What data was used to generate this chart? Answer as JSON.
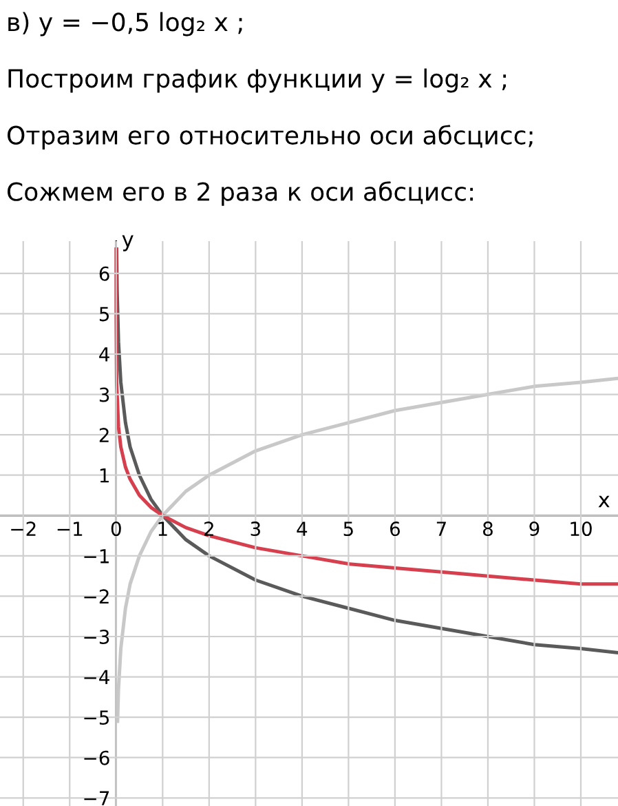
{
  "chart_data": {
    "type": "line",
    "title": "в) y = −0,5 log₂ x ;",
    "annotations": [
      "Построим график функции y = log₂ x ;",
      "Отразим его относительно оси абсцисс;",
      "Сожмем его в 2 раза к оси абсцисс:"
    ],
    "xlabel": "x",
    "ylabel": "y",
    "series": [
      {
        "color": "#c8c8c8",
        "x": [
          0.03,
          0.05,
          0.1,
          0.2,
          0.3,
          0.5,
          0.75,
          1,
          1.5,
          2,
          3,
          4,
          5,
          6,
          7,
          8,
          9,
          10,
          10.8
        ],
        "values": [
          -5.1,
          -4.3,
          -3.3,
          -2.3,
          -1.7,
          -1,
          -0.4,
          0,
          0.6,
          1,
          1.6,
          2,
          2.3,
          2.6,
          2.8,
          3,
          3.2,
          3.3,
          3.4
        ]
      },
      {
        "color": "#5a5a5a",
        "x": [
          0.01,
          0.02,
          0.05,
          0.1,
          0.2,
          0.3,
          0.5,
          0.75,
          1,
          1.5,
          2,
          3,
          4,
          5,
          6,
          7,
          8,
          9,
          10,
          10.8
        ],
        "values": [
          6.6,
          5.6,
          4.3,
          3.3,
          2.3,
          1.7,
          1,
          0.4,
          0,
          -0.6,
          -1,
          -1.6,
          -2,
          -2.3,
          -2.6,
          -2.8,
          -3,
          -3.2,
          -3.3,
          -3.4
        ]
      },
      {
        "color": "#d6404e",
        "x": [
          0.0001,
          0.001,
          0.01,
          0.05,
          0.1,
          0.2,
          0.3,
          0.5,
          0.75,
          1,
          1.5,
          2,
          3,
          4,
          5,
          6,
          7,
          8,
          9,
          10,
          10.8
        ],
        "values": [
          6.6,
          5,
          3.3,
          2.2,
          1.7,
          1.2,
          0.9,
          0.5,
          0.2,
          0,
          -0.3,
          -0.5,
          -0.8,
          -1,
          -1.2,
          -1.3,
          -1.4,
          -1.5,
          -1.6,
          -1.7,
          -1.7
        ]
      }
    ],
    "xlim": [
      -2.5,
      10.8
    ],
    "ylim": [
      -7.2,
      6.8
    ],
    "xticks": [
      -2,
      -1,
      0,
      1,
      2,
      3,
      4,
      5,
      6,
      7,
      8,
      9,
      10
    ],
    "yticks": [
      -7,
      -6,
      -5,
      -4,
      -3,
      -2,
      -1,
      {
        "value": 0,
        "label": null
      },
      1,
      2,
      3,
      4,
      5,
      6
    ],
    "grid": true,
    "marker": "none",
    "line_style": "solid",
    "legend": false
  }
}
